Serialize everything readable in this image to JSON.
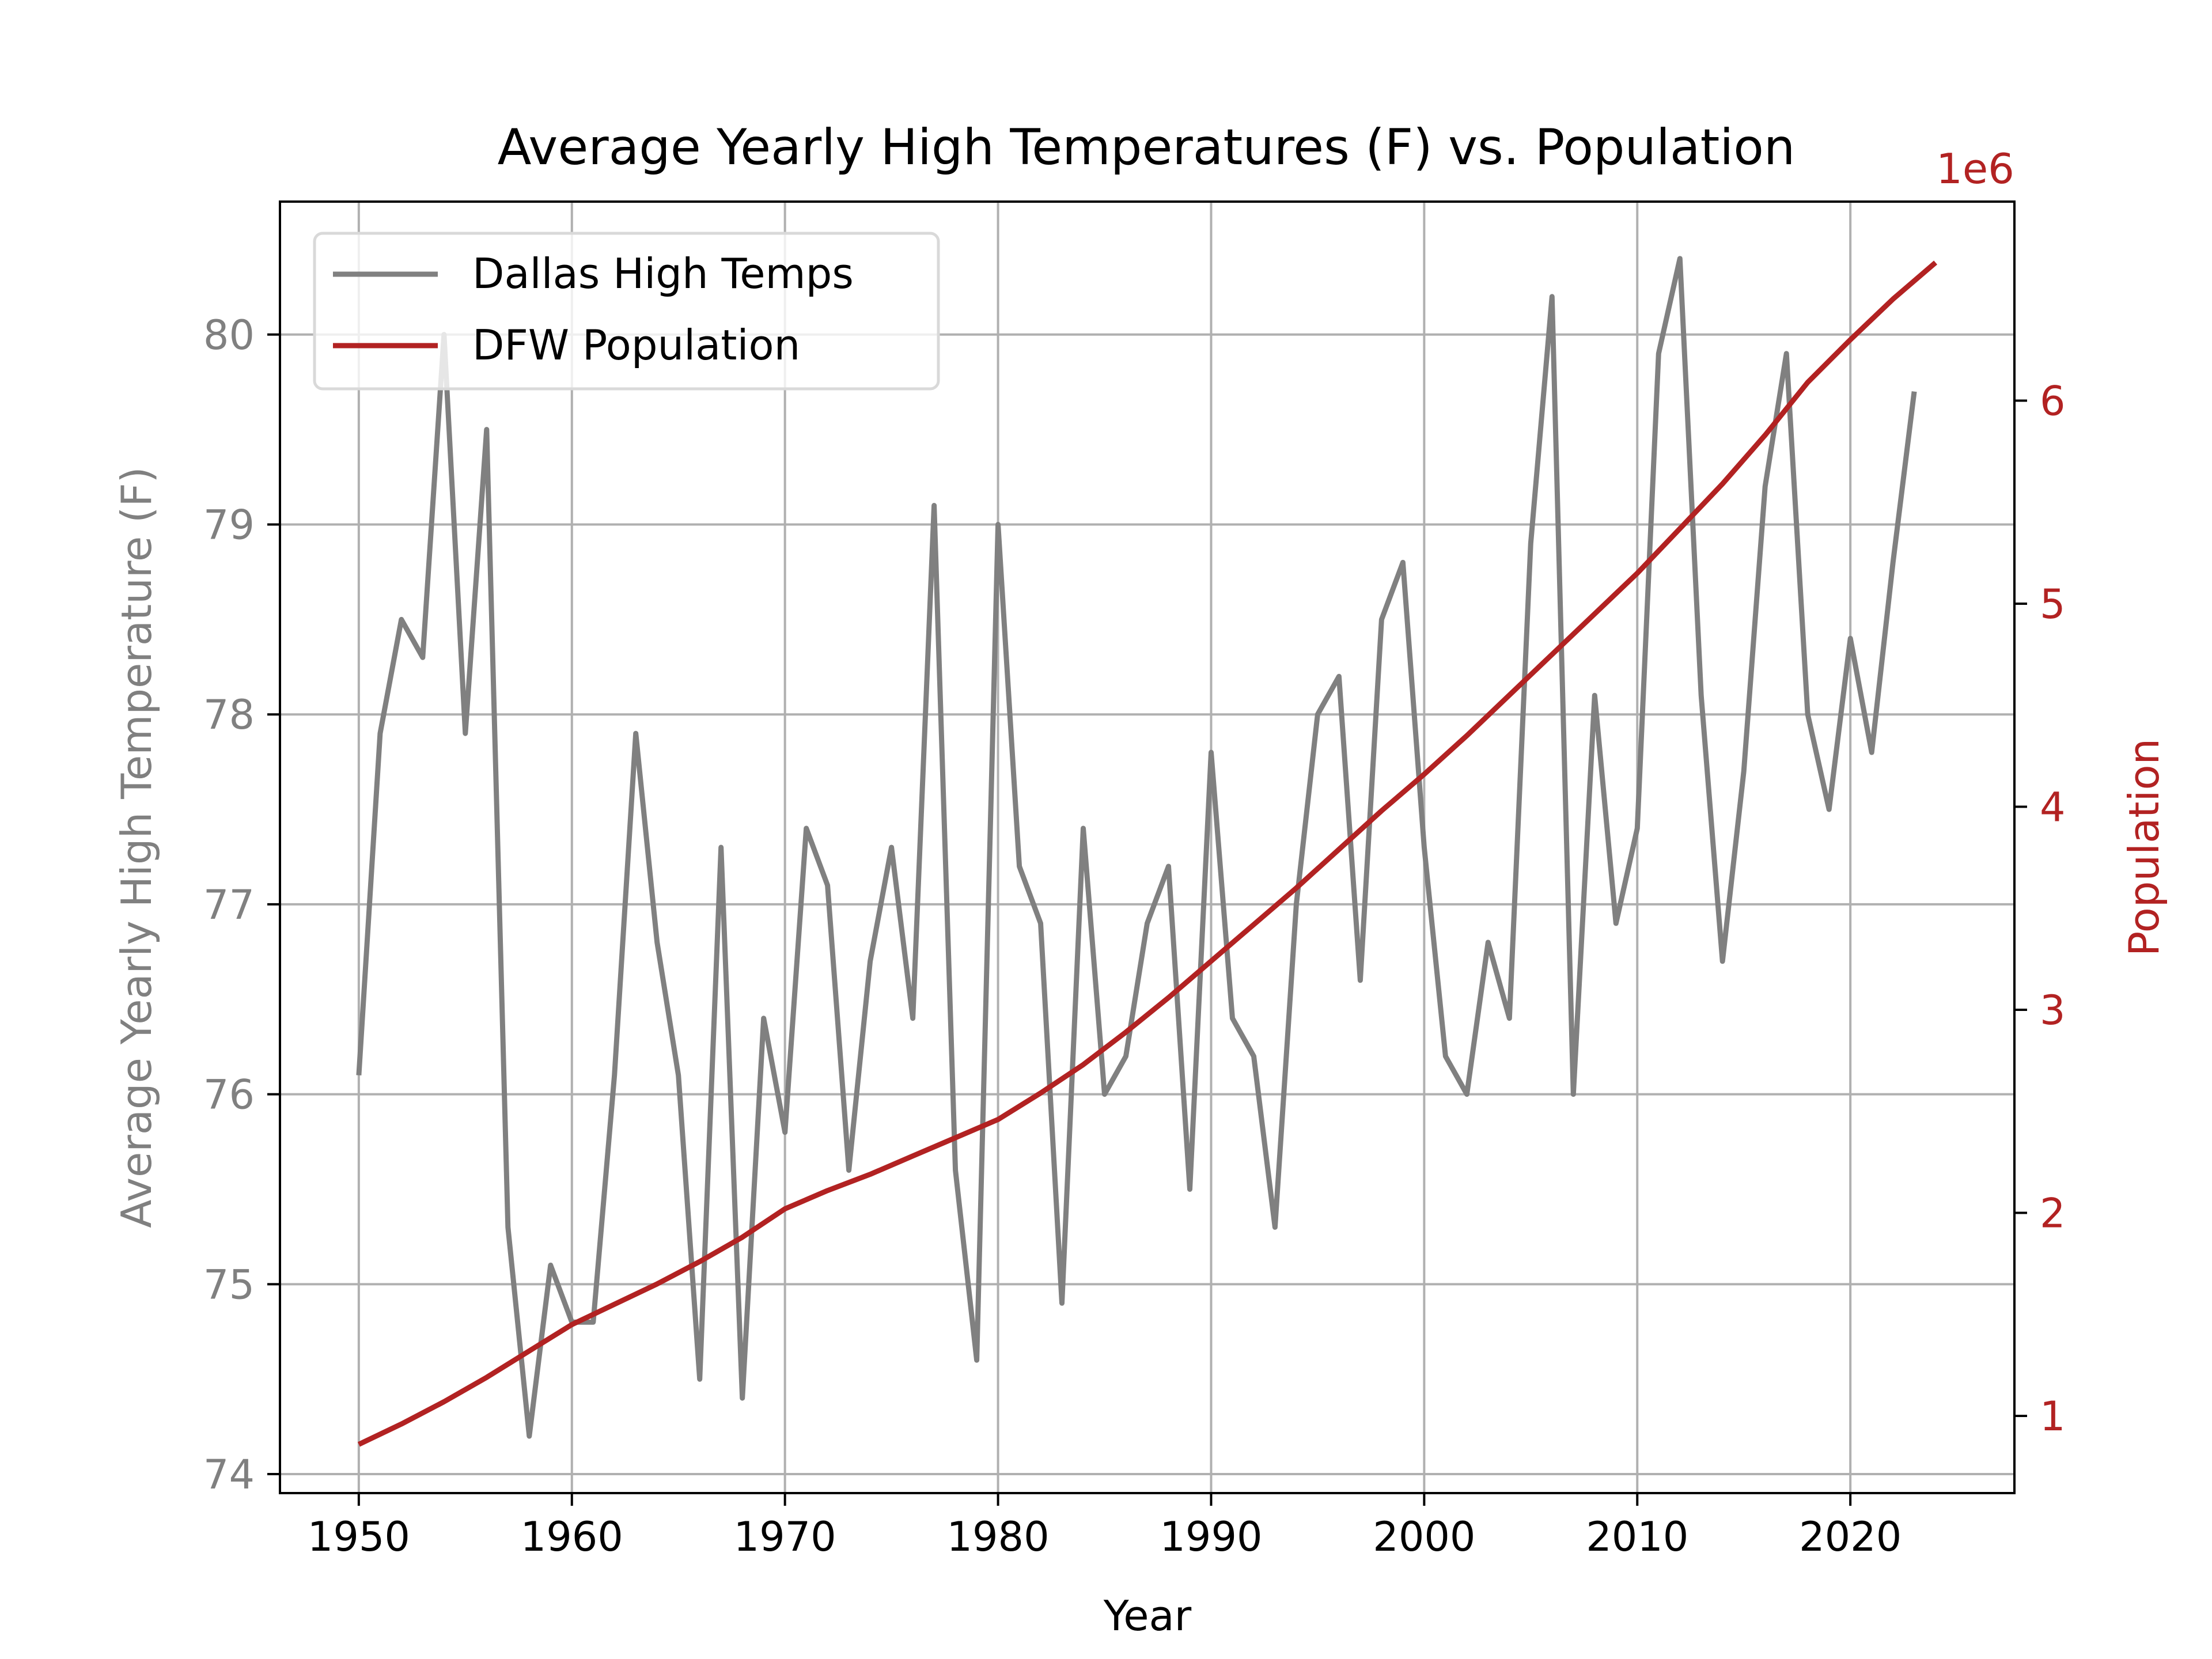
{
  "chart_data": {
    "type": "line",
    "title": "Average Yearly High Temperatures (F) vs. Population",
    "xlabel": "Year",
    "ylabel_left": "Average Yearly High Temperature (F)",
    "ylabel_right": "Population",
    "right_offset_label": "1e6",
    "xlim": [
      1946.3,
      2027.7
    ],
    "ylim_left": [
      73.9,
      80.7
    ],
    "ylim_right": [
      0.62,
      6.98
    ],
    "right_scale": 1000000,
    "x_ticks": [
      1950,
      1960,
      1970,
      1980,
      1990,
      2000,
      2010,
      2020
    ],
    "x_tick_labels": [
      "1950",
      "1960",
      "1970",
      "1980",
      "1990",
      "2000",
      "2010",
      "2020"
    ],
    "y_ticks_left": [
      74,
      75,
      76,
      77,
      78,
      79,
      80
    ],
    "y_tick_labels_left": [
      "74",
      "75",
      "76",
      "77",
      "78",
      "79",
      "80"
    ],
    "y_ticks_right": [
      1,
      2,
      3,
      4,
      5,
      6
    ],
    "y_tick_labels_right": [
      "1",
      "2",
      "3",
      "4",
      "5",
      "6"
    ],
    "grid": true,
    "legend_position": "upper-left",
    "colors": {
      "temps": "#808080",
      "population": "#b22222",
      "left_axis_text": "#808080",
      "right_axis_text": "#b22222",
      "grid": "#b0b0b0"
    },
    "series": [
      {
        "name": "Dallas High Temps",
        "axis": "left",
        "x": [
          1950,
          1951,
          1952,
          1953,
          1954,
          1955,
          1956,
          1957,
          1958,
          1959,
          1960,
          1961,
          1962,
          1963,
          1964,
          1965,
          1966,
          1967,
          1968,
          1969,
          1970,
          1971,
          1972,
          1973,
          1974,
          1975,
          1976,
          1977,
          1978,
          1979,
          1980,
          1981,
          1982,
          1983,
          1984,
          1985,
          1986,
          1987,
          1988,
          1989,
          1990,
          1991,
          1992,
          1993,
          1994,
          1995,
          1996,
          1997,
          1998,
          1999,
          2000,
          2001,
          2002,
          2003,
          2004,
          2005,
          2006,
          2007,
          2008,
          2009,
          2010,
          2011,
          2012,
          2013,
          2014,
          2015,
          2016,
          2017,
          2018,
          2019,
          2020,
          2021,
          2022,
          2023
        ],
        "values": [
          76.1,
          77.9,
          78.5,
          78.3,
          80.0,
          77.9,
          79.5,
          75.3,
          74.2,
          75.1,
          74.8,
          74.8,
          76.1,
          77.9,
          76.8,
          76.1,
          74.5,
          77.3,
          74.4,
          76.4,
          75.8,
          77.4,
          77.1,
          75.6,
          76.7,
          77.3,
          76.4,
          79.1,
          75.6,
          74.6,
          79.0,
          77.2,
          76.9,
          74.9,
          77.4,
          76.0,
          76.2,
          76.9,
          77.2,
          75.5,
          77.8,
          76.4,
          76.2,
          75.3,
          77.0,
          78.0,
          78.2,
          76.6,
          78.5,
          78.8,
          77.3,
          76.2,
          76.0,
          76.8,
          76.4,
          78.9,
          80.2,
          76.0,
          78.1,
          76.9,
          77.4,
          79.9,
          80.4,
          78.1,
          76.7,
          77.7,
          79.2,
          79.9,
          78.0,
          77.5,
          78.4,
          77.8,
          78.8,
          79.7
        ]
      },
      {
        "name": "DFW Population",
        "axis": "right",
        "x": [
          1950,
          1952,
          1954,
          1956,
          1958,
          1960,
          1962,
          1964,
          1966,
          1968,
          1970,
          1972,
          1974,
          1976,
          1978,
          1980,
          1982,
          1984,
          1986,
          1988,
          1990,
          1992,
          1994,
          1996,
          1998,
          2000,
          2002,
          2004,
          2006,
          2008,
          2010,
          2012,
          2014,
          2016,
          2018,
          2020,
          2022,
          2024
        ],
        "values": [
          0.86,
          0.96,
          1.07,
          1.19,
          1.32,
          1.45,
          1.55,
          1.65,
          1.76,
          1.88,
          2.02,
          2.11,
          2.19,
          2.28,
          2.37,
          2.46,
          2.59,
          2.73,
          2.89,
          3.06,
          3.24,
          3.42,
          3.6,
          3.79,
          3.98,
          4.16,
          4.35,
          4.55,
          4.75,
          4.95,
          5.15,
          5.37,
          5.59,
          5.83,
          6.09,
          6.3,
          6.5,
          6.68
        ]
      }
    ]
  }
}
